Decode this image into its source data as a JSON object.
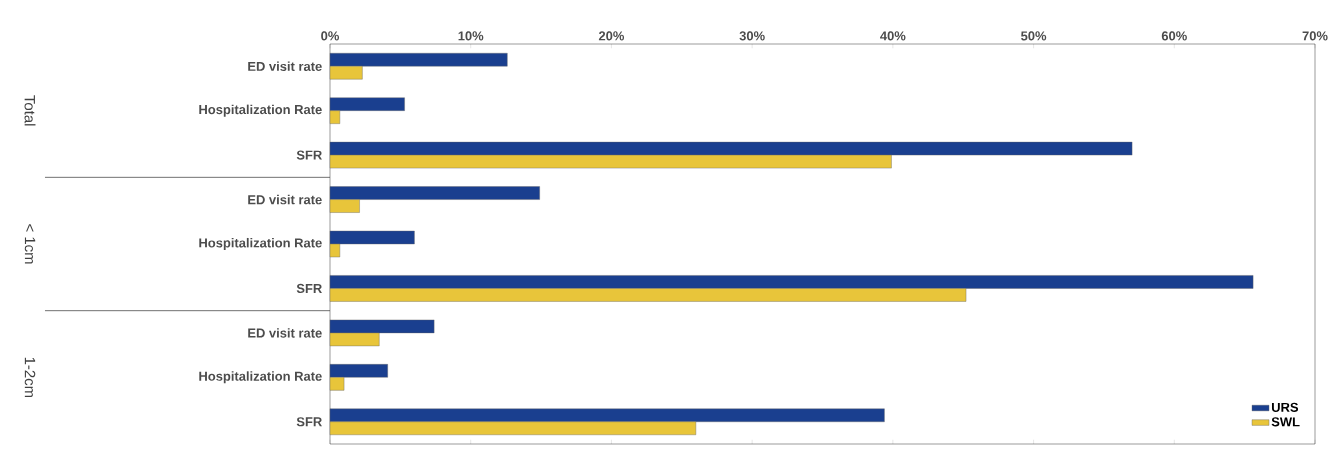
{
  "chart_data": {
    "type": "bar",
    "orientation": "horizontal",
    "categories": [
      "ED visit rate",
      "Hospitalization Rate",
      "SFR",
      "ED visit rate",
      "Hospitalization Rate",
      "SFR",
      "ED visit rate",
      "Hospitalization Rate",
      "SFR"
    ],
    "series": [
      {
        "name": "URS",
        "color": "#1a3f8f",
        "values": [
          12.6,
          5.3,
          57.0,
          14.9,
          6.0,
          65.6,
          7.4,
          4.1,
          39.4
        ]
      },
      {
        "name": "SWL",
        "color": "#e8c53a",
        "values": [
          2.3,
          0.7,
          39.9,
          2.1,
          0.7,
          45.2,
          3.5,
          1.0,
          26.0
        ]
      }
    ],
    "annotations": [
      "Total",
      "< 1cm",
      "1-2cm"
    ],
    "xlim": [
      0,
      70
    ],
    "xticks": [
      {
        "value": 0,
        "label": "0%"
      },
      {
        "value": 10,
        "label": "10%"
      },
      {
        "value": 20,
        "label": "20%"
      },
      {
        "value": 30,
        "label": "30%"
      },
      {
        "value": 40,
        "label": "40%"
      },
      {
        "value": 50,
        "label": "50%"
      },
      {
        "value": 60,
        "label": "60%"
      },
      {
        "value": 70,
        "label": "70%"
      }
    ],
    "legend": "bottom right"
  }
}
